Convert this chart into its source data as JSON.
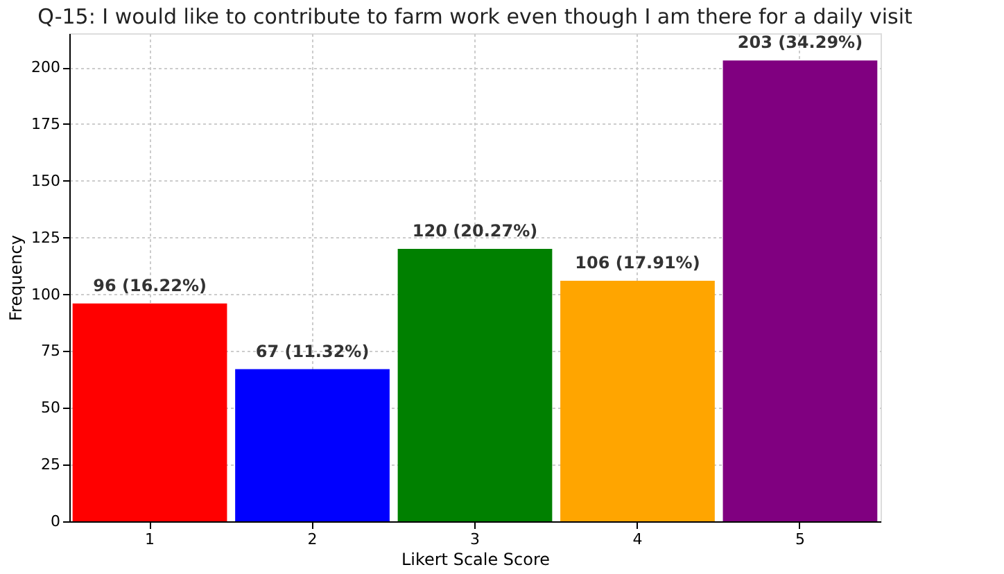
{
  "chart_data": {
    "type": "bar",
    "title": "Q-15: I would like to contribute to farm work even though I am there for a daily visit",
    "xlabel": "Likert Scale Score",
    "ylabel": "Frequency",
    "categories": [
      "1",
      "2",
      "3",
      "4",
      "5"
    ],
    "values": [
      96,
      67,
      120,
      106,
      203
    ],
    "colors": [
      "#ff0000",
      "#0000ff",
      "#008000",
      "#ffa500",
      "#800080"
    ],
    "value_labels": [
      "96 (16.22%)",
      "67 (11.32%)",
      "120 (20.27%)",
      "106 (17.91%)",
      "203 (34.29%)"
    ],
    "ylim": [
      0,
      215
    ],
    "yticks": [
      0,
      25,
      50,
      75,
      100,
      125,
      150,
      175,
      200
    ],
    "grid": true
  }
}
